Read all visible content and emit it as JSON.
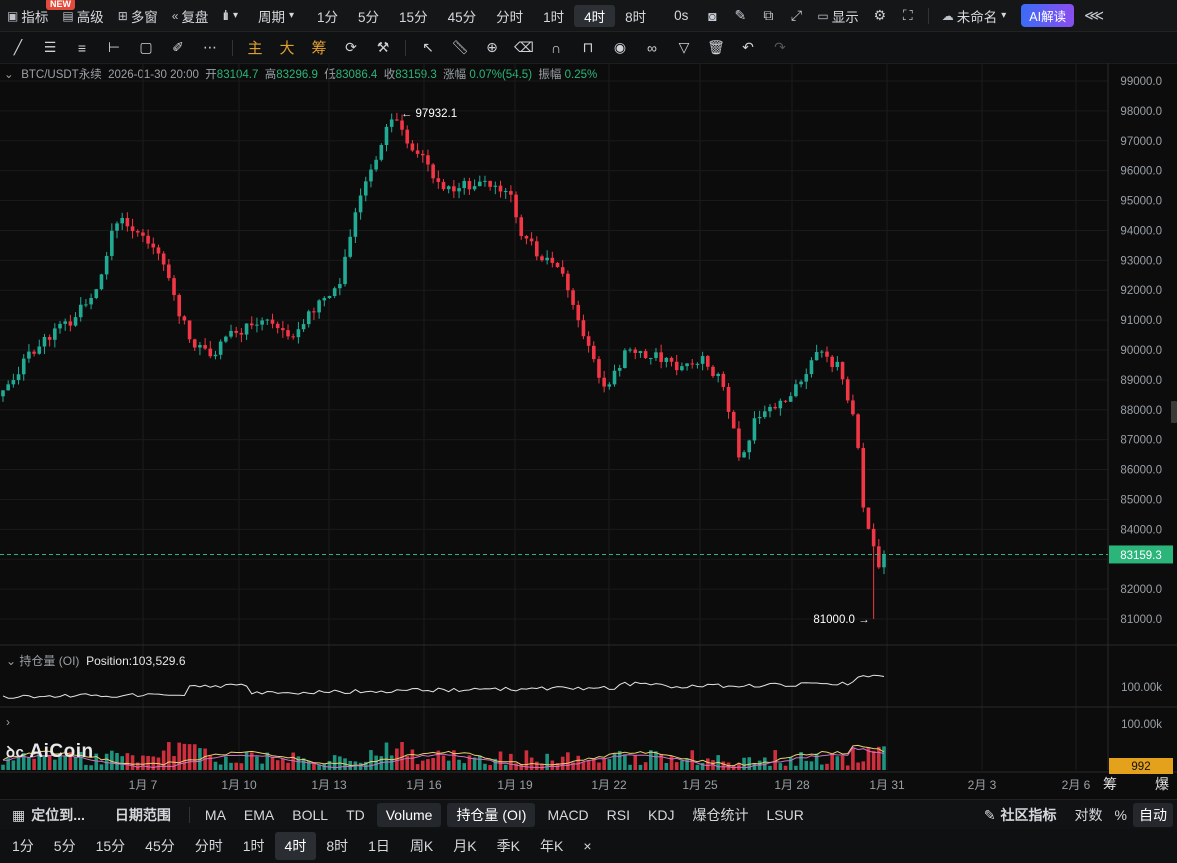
{
  "topbar": {
    "indicator": "指标",
    "new_badge": "NEW",
    "advanced": "高级",
    "multi_window": "多窗",
    "replay": "复盘",
    "period": "周期",
    "intervals": [
      "1分",
      "5分",
      "15分",
      "45分",
      "分时",
      "1时",
      "4时",
      "8时"
    ],
    "active_interval": "4时",
    "zero_s": "0s",
    "display": "显示",
    "unnamed": "未命名",
    "ai_read": "AI解读"
  },
  "drawbar": {
    "cn_main": "主",
    "cn_big": "大",
    "cn_chip": "筹"
  },
  "info": {
    "symbol": "BTC/USDT永续",
    "datetime": "2026-01-30 20:00",
    "open_label": "开",
    "open": "83104.7",
    "high_label": "高",
    "high": "83296.9",
    "low_label": "低",
    "low": "83086.4",
    "close_label": "收",
    "close": "83159.3",
    "chg_label": "涨幅",
    "chg": "0.07%(54.5)",
    "amp_label": "振幅",
    "amp": "0.25%"
  },
  "chart_data": {
    "type": "candlestick",
    "ylim": [
      80400,
      99400
    ],
    "y_ticks": [
      "99000.0",
      "98000.0",
      "97000.0",
      "96000.0",
      "95000.0",
      "94000.0",
      "93000.0",
      "92000.0",
      "91000.0",
      "90000.0",
      "89000.0",
      "88000.0",
      "87000.0",
      "86000.0",
      "85000.0",
      "84000.0",
      "83000.0",
      "82000.0",
      "81000.0"
    ],
    "x_labels": [
      "1月 7",
      "1月 10",
      "1月 13",
      "1月 16",
      "1月 19",
      "1月 22",
      "1月 25",
      "1月 28",
      "1月 31",
      "2月 3",
      "2月 6"
    ],
    "last_price": "83159.3",
    "max_label": "97932.1",
    "min_label": "81000.0",
    "keypoints": [
      [
        0,
        88600
      ],
      [
        5,
        89900
      ],
      [
        12,
        90800
      ],
      [
        18,
        92100
      ],
      [
        22,
        94400
      ],
      [
        26,
        94100
      ],
      [
        30,
        93200
      ],
      [
        36,
        90300
      ],
      [
        40,
        89900
      ],
      [
        45,
        90600
      ],
      [
        50,
        90900
      ],
      [
        56,
        90600
      ],
      [
        60,
        91400
      ],
      [
        65,
        92300
      ],
      [
        70,
        95800
      ],
      [
        75,
        97700
      ],
      [
        80,
        96600
      ],
      [
        85,
        95400
      ],
      [
        90,
        95500
      ],
      [
        98,
        95400
      ],
      [
        100,
        93900
      ],
      [
        104,
        93100
      ],
      [
        108,
        92600
      ],
      [
        112,
        90600
      ],
      [
        116,
        88700
      ],
      [
        120,
        89900
      ],
      [
        126,
        89800
      ],
      [
        130,
        89400
      ],
      [
        135,
        89800
      ],
      [
        139,
        88800
      ],
      [
        142,
        86400
      ],
      [
        146,
        87900
      ],
      [
        150,
        88300
      ],
      [
        154,
        88900
      ],
      [
        158,
        90000
      ],
      [
        161,
        89400
      ],
      [
        163,
        88500
      ],
      [
        165,
        86900
      ],
      [
        166,
        84800
      ],
      [
        168,
        83300
      ],
      [
        169,
        82700
      ],
      [
        170,
        83159
      ]
    ]
  },
  "oi": {
    "label": "持仓量 (OI)",
    "position": "Position:103,529.6",
    "scale1": "100.00k",
    "scale2": "100.00k",
    "vol_value": "992"
  },
  "side_tags": {
    "chip": "筹",
    "burst": "爆"
  },
  "bottombar1": {
    "locate": "定位到...",
    "date_range": "日期范围",
    "indicators": [
      "MA",
      "EMA",
      "BOLL",
      "TD",
      "Volume",
      "持仓量 (OI)",
      "MACD",
      "RSI",
      "KDJ",
      "爆仓统计",
      "LSUR"
    ],
    "active": [
      "Volume",
      "持仓量 (OI)"
    ],
    "community": "社区指标",
    "log": "对数",
    "pct": "%",
    "auto": "自动"
  },
  "bottombar2": {
    "intervals": [
      "1分",
      "5分",
      "15分",
      "45分",
      "分时",
      "1时",
      "4时",
      "8时",
      "1日",
      "周K",
      "月K",
      "季K",
      "年K"
    ],
    "active": "4时",
    "close": "×"
  },
  "logo": "AiCoin",
  "colors": {
    "up": "#22ab94",
    "down": "#f23645",
    "accent": "#2bb57a",
    "vol_tag": "#e3a11c"
  }
}
